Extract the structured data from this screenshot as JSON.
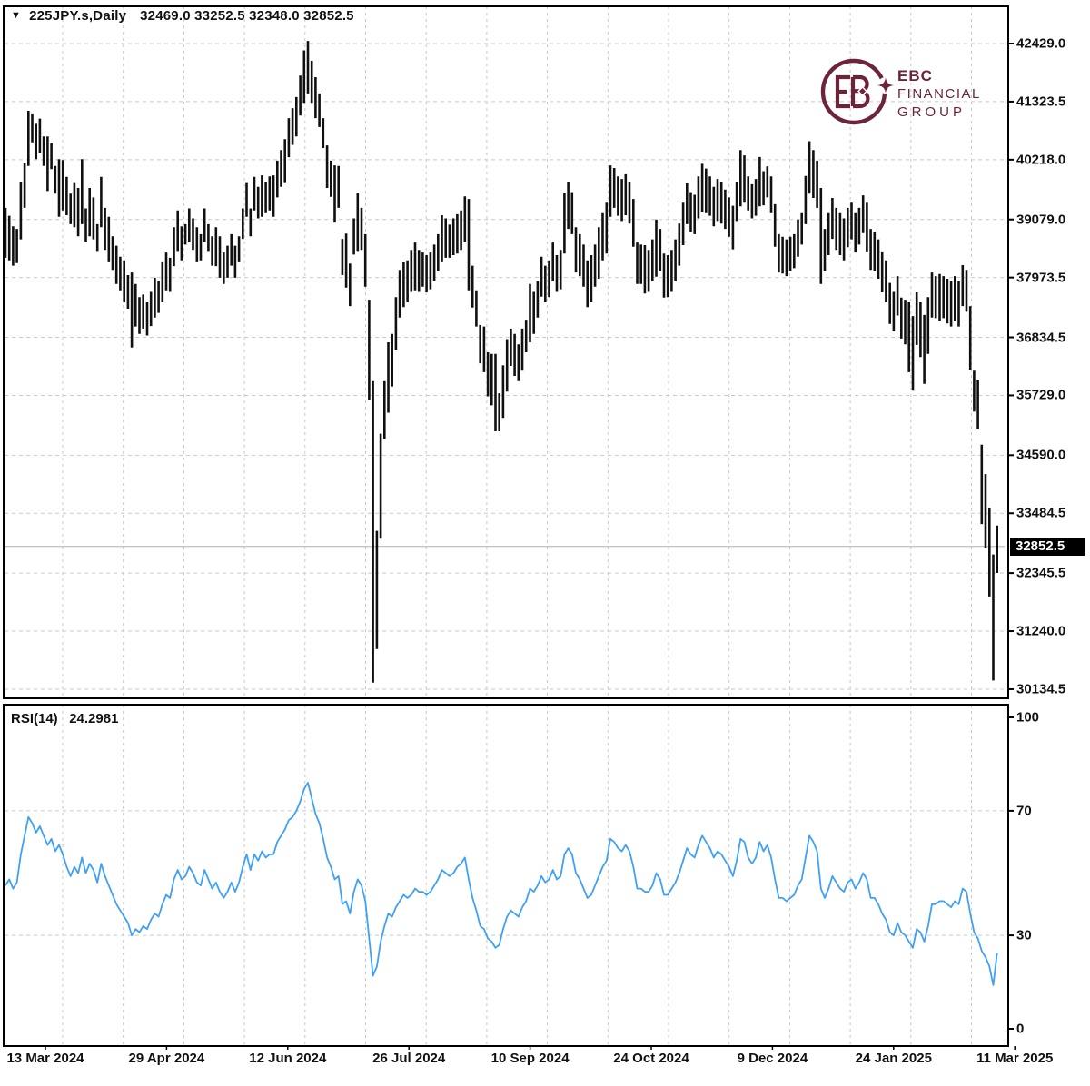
{
  "header": {
    "collapse_icon": "▼",
    "symbol_timeframe": "225JPY.s,Daily",
    "ohlc_text": "32469.0 33252.5 32348.0 32852.5"
  },
  "logo": {
    "line1": "EBC",
    "line2": "FINANCIAL",
    "line3": "GROUP"
  },
  "rsi_panel": {
    "label": "RSI(14)",
    "value": "24.2981"
  },
  "current_price_label": "32852.5",
  "chart_data": {
    "type": "bar",
    "subtype": "ohlc_high_low_bars",
    "title": "225JPY.s,Daily",
    "symbol": "225JPY.s",
    "timeframe": "Daily",
    "last_bar_ohlc": {
      "open": 32469.0,
      "high": 33252.5,
      "low": 32348.0,
      "close": 32852.5
    },
    "current_price": 32852.5,
    "grid": true,
    "legend_position": "none",
    "price_axis_ticks": [
      42429.0,
      41323.5,
      40218.0,
      39079.0,
      37973.5,
      36834.5,
      35729.0,
      34590.0,
      33484.5,
      32345.5,
      31240.0,
      30134.5
    ],
    "price_range": [
      30134.5,
      42429.0
    ],
    "x_axis_labels": [
      "13 Mar 2024",
      "29 Apr 2024",
      "12 Jun 2024",
      "26 Jul 2024",
      "10 Sep 2024",
      "24 Oct 2024",
      "9 Dec 2024",
      "24 Jan 2025",
      "11 Mar 2025"
    ],
    "bars_high_low": [
      [
        39300,
        38350
      ],
      [
        39150,
        38300
      ],
      [
        38950,
        38200
      ],
      [
        38900,
        38250
      ],
      [
        39800,
        38700
      ],
      [
        40150,
        39300
      ],
      [
        41150,
        40100
      ],
      [
        41100,
        40550
      ],
      [
        40900,
        40230
      ],
      [
        41000,
        40350
      ],
      [
        40660,
        40100
      ],
      [
        40660,
        39620
      ],
      [
        40530,
        40040
      ],
      [
        40100,
        39570
      ],
      [
        40230,
        39130
      ],
      [
        40210,
        39250
      ],
      [
        39890,
        39160
      ],
      [
        39570,
        38990
      ],
      [
        39790,
        38930
      ],
      [
        39680,
        38760
      ],
      [
        40230,
        38990
      ],
      [
        39290,
        38660
      ],
      [
        39680,
        38760
      ],
      [
        39500,
        38700
      ],
      [
        38990,
        38480
      ],
      [
        39890,
        38930
      ],
      [
        39300,
        38500
      ],
      [
        39130,
        38280
      ],
      [
        38760,
        38120
      ],
      [
        38580,
        37850
      ],
      [
        38370,
        37730
      ],
      [
        38300,
        37500
      ],
      [
        38020,
        37380
      ],
      [
        38070,
        36640
      ],
      [
        37850,
        37040
      ],
      [
        37600,
        36900
      ],
      [
        37650,
        37000
      ],
      [
        37500,
        36870
      ],
      [
        37700,
        37050
      ],
      [
        37970,
        37210
      ],
      [
        37900,
        37300
      ],
      [
        38280,
        37500
      ],
      [
        38450,
        37730
      ],
      [
        38350,
        37700
      ],
      [
        38930,
        38190
      ],
      [
        39250,
        38480
      ],
      [
        38950,
        38300
      ],
      [
        38990,
        38600
      ],
      [
        39290,
        38660
      ],
      [
        39100,
        38500
      ],
      [
        38930,
        38280
      ],
      [
        38800,
        38300
      ],
      [
        39290,
        38660
      ],
      [
        38990,
        38480
      ],
      [
        38760,
        38200
      ],
      [
        38930,
        38190
      ],
      [
        38760,
        37970
      ],
      [
        38450,
        37850
      ],
      [
        38580,
        37970
      ],
      [
        38800,
        38200
      ],
      [
        38580,
        37970
      ],
      [
        38760,
        38280
      ],
      [
        39290,
        38710
      ],
      [
        39790,
        39130
      ],
      [
        39290,
        38760
      ],
      [
        39890,
        39250
      ],
      [
        39700,
        39100
      ],
      [
        39920,
        39130
      ],
      [
        39800,
        39200
      ],
      [
        39900,
        39250
      ],
      [
        39920,
        39130
      ],
      [
        40200,
        39500
      ],
      [
        40400,
        39700
      ],
      [
        40610,
        39790
      ],
      [
        41010,
        40265
      ],
      [
        41200,
        40500
      ],
      [
        41410,
        40660
      ],
      [
        41820,
        41060
      ],
      [
        42300,
        41300
      ],
      [
        42480,
        41480
      ],
      [
        42100,
        41300
      ],
      [
        41790,
        41010
      ],
      [
        41480,
        40840
      ],
      [
        41010,
        40440
      ],
      [
        40490,
        39680
      ],
      [
        40200,
        39510
      ],
      [
        40110,
        39020
      ],
      [
        40100,
        39300
      ],
      [
        38710,
        38020
      ],
      [
        38810,
        37780
      ],
      [
        38240,
        37430
      ],
      [
        39100,
        38410
      ],
      [
        39590,
        38480
      ],
      [
        39300,
        38500
      ],
      [
        38800,
        37800
      ],
      [
        37550,
        35650
      ],
      [
        36000,
        30260
      ],
      [
        33150,
        30900
      ],
      [
        35000,
        33000
      ],
      [
        36000,
        34900
      ],
      [
        36740,
        35400
      ],
      [
        36900,
        35900
      ],
      [
        37600,
        36600
      ],
      [
        38120,
        37210
      ],
      [
        38270,
        37410
      ],
      [
        38300,
        37500
      ],
      [
        38500,
        37700
      ],
      [
        38640,
        37730
      ],
      [
        38500,
        37700
      ],
      [
        38450,
        37800
      ],
      [
        38400,
        37690
      ],
      [
        38450,
        37750
      ],
      [
        38600,
        37900
      ],
      [
        38800,
        38100
      ],
      [
        39160,
        38280
      ],
      [
        39100,
        38350
      ],
      [
        38980,
        38350
      ],
      [
        39100,
        38400
      ],
      [
        39180,
        38430
      ],
      [
        39250,
        38500
      ],
      [
        39520,
        38660
      ],
      [
        39470,
        37730
      ],
      [
        38200,
        37400
      ],
      [
        37730,
        37040
      ],
      [
        37070,
        36340
      ],
      [
        37040,
        36170
      ],
      [
        36550,
        35710
      ],
      [
        36520,
        35540
      ],
      [
        36520,
        35045
      ],
      [
        35770,
        35045
      ],
      [
        36300,
        35300
      ],
      [
        36800,
        35800
      ],
      [
        37000,
        36290
      ],
      [
        36900,
        36100
      ],
      [
        36700,
        36000
      ],
      [
        37000,
        36200
      ],
      [
        37170,
        36550
      ],
      [
        37850,
        36740
      ],
      [
        37700,
        36900
      ],
      [
        37900,
        37210
      ],
      [
        38370,
        37610
      ],
      [
        38200,
        37500
      ],
      [
        38300,
        37600
      ],
      [
        38640,
        37900
      ],
      [
        38400,
        37700
      ],
      [
        38500,
        37750
      ],
      [
        39580,
        38430
      ],
      [
        39800,
        38900
      ],
      [
        39600,
        38800
      ],
      [
        38930,
        38070
      ],
      [
        38800,
        38000
      ],
      [
        38600,
        37800
      ],
      [
        38300,
        37410
      ],
      [
        38400,
        37500
      ],
      [
        38600,
        37800
      ],
      [
        38930,
        37950
      ],
      [
        39200,
        38300
      ],
      [
        39400,
        38430
      ],
      [
        40110,
        39130
      ],
      [
        40060,
        39300
      ],
      [
        39900,
        39150
      ],
      [
        39850,
        39050
      ],
      [
        39940,
        39160
      ],
      [
        39800,
        39000
      ],
      [
        39470,
        38560
      ],
      [
        38640,
        37850
      ],
      [
        38600,
        37850
      ],
      [
        38590,
        37670
      ],
      [
        38500,
        37700
      ],
      [
        38700,
        37900
      ],
      [
        39080,
        37990
      ],
      [
        38900,
        38100
      ],
      [
        38430,
        37590
      ],
      [
        38400,
        37600
      ],
      [
        38500,
        37700
      ],
      [
        38700,
        37900
      ],
      [
        39000,
        38200
      ],
      [
        39400,
        38590
      ],
      [
        39770,
        38990
      ],
      [
        39600,
        38850
      ],
      [
        39550,
        38800
      ],
      [
        39900,
        39100
      ],
      [
        40140,
        39230
      ],
      [
        40050,
        39200
      ],
      [
        39900,
        39150
      ],
      [
        39700,
        38950
      ],
      [
        39850,
        39050
      ],
      [
        39800,
        39000
      ],
      [
        39650,
        38900
      ],
      [
        39500,
        38750
      ],
      [
        39340,
        38510
      ],
      [
        39800,
        39050
      ],
      [
        40400,
        39330
      ],
      [
        40300,
        39400
      ],
      [
        39900,
        39250
      ],
      [
        39750,
        39100
      ],
      [
        39850,
        39150
      ],
      [
        40270,
        39330
      ],
      [
        40000,
        39350
      ],
      [
        40090,
        39500
      ],
      [
        39900,
        39200
      ],
      [
        39370,
        38560
      ],
      [
        38800,
        38070
      ],
      [
        38750,
        38050
      ],
      [
        38700,
        38000
      ],
      [
        38750,
        38100
      ],
      [
        38800,
        38150
      ],
      [
        39080,
        38370
      ],
      [
        39200,
        38600
      ],
      [
        39910,
        38990
      ],
      [
        40570,
        39570
      ],
      [
        40400,
        39490
      ],
      [
        40200,
        39300
      ],
      [
        39680,
        37850
      ],
      [
        38900,
        38100
      ],
      [
        39200,
        38400
      ],
      [
        39490,
        38710
      ],
      [
        39300,
        38500
      ],
      [
        39200,
        38400
      ],
      [
        39100,
        38300
      ],
      [
        39300,
        38550
      ],
      [
        39400,
        38700
      ],
      [
        39200,
        38450
      ],
      [
        39300,
        38600
      ],
      [
        39540,
        38820
      ],
      [
        39400,
        38470
      ],
      [
        38900,
        38120
      ],
      [
        38850,
        38100
      ],
      [
        38700,
        37950
      ],
      [
        38470,
        37690
      ],
      [
        38300,
        37500
      ],
      [
        37870,
        37090
      ],
      [
        37700,
        36950
      ],
      [
        38000,
        37250
      ],
      [
        37590,
        36810
      ],
      [
        37550,
        36700
      ],
      [
        37500,
        36170
      ],
      [
        37240,
        35820
      ],
      [
        37690,
        36690
      ],
      [
        37500,
        36460
      ],
      [
        37260,
        35950
      ],
      [
        37600,
        36520
      ],
      [
        38070,
        37210
      ],
      [
        38000,
        37200
      ],
      [
        38040,
        37150
      ],
      [
        38000,
        37200
      ],
      [
        37950,
        37100
      ],
      [
        37900,
        37040
      ],
      [
        38000,
        37150
      ],
      [
        37900,
        37040
      ],
      [
        38210,
        37430
      ],
      [
        38120,
        37320
      ],
      [
        37430,
        36220
      ],
      [
        36200,
        35420
      ],
      [
        36030,
        35080
      ],
      [
        34790,
        33280
      ],
      [
        34230,
        32830
      ],
      [
        33580,
        31900
      ],
      [
        32700,
        30300
      ],
      [
        33252,
        32348
      ]
    ],
    "rsi": {
      "name": "RSI",
      "period": 14,
      "current_value": 24.2981,
      "scale_ticks": [
        100,
        70,
        30,
        0
      ],
      "level_lines": [
        70,
        30
      ],
      "values": [
        46,
        48,
        45,
        47,
        56,
        62,
        68,
        66,
        63,
        65,
        62,
        59,
        61,
        57,
        59,
        56,
        52,
        49,
        52,
        50,
        55,
        50,
        53,
        51,
        47,
        53,
        49,
        46,
        43,
        40,
        38,
        36,
        34,
        30,
        32,
        31,
        33,
        32,
        35,
        37,
        36,
        40,
        43,
        42,
        48,
        51,
        48,
        49,
        52,
        50,
        47,
        46,
        51,
        48,
        45,
        47,
        44,
        42,
        44,
        47,
        44,
        47,
        52,
        56,
        51,
        56,
        54,
        57,
        55,
        56,
        56,
        60,
        62,
        64,
        67,
        68,
        70,
        73,
        77,
        79,
        74,
        69,
        66,
        61,
        55,
        52,
        48,
        49,
        40,
        41,
        37,
        44,
        48,
        46,
        41,
        29,
        17,
        20,
        28,
        33,
        37,
        36,
        39,
        41,
        43,
        42,
        43,
        45,
        44,
        44,
        43,
        44,
        46,
        48,
        51,
        50,
        49,
        50,
        52,
        53,
        55,
        48,
        42,
        38,
        33,
        32,
        29,
        28,
        26,
        27,
        32,
        36,
        38,
        37,
        36,
        39,
        41,
        45,
        44,
        46,
        49,
        47,
        48,
        51,
        48,
        49,
        56,
        58,
        56,
        50,
        48,
        45,
        42,
        43,
        46,
        49,
        52,
        54,
        61,
        60,
        58,
        57,
        59,
        57,
        52,
        45,
        45,
        44,
        44,
        46,
        50,
        48,
        43,
        43,
        45,
        47,
        50,
        54,
        58,
        56,
        55,
        59,
        62,
        60,
        58,
        55,
        57,
        56,
        54,
        52,
        49,
        54,
        61,
        60,
        55,
        53,
        55,
        60,
        57,
        59,
        55,
        48,
        42,
        42,
        41,
        42,
        43,
        46,
        48,
        55,
        62,
        60,
        57,
        45,
        42,
        45,
        49,
        47,
        45,
        44,
        47,
        48,
        45,
        47,
        50,
        48,
        42,
        42,
        40,
        37,
        35,
        31,
        30,
        34,
        31,
        30,
        28,
        26,
        32,
        31,
        28,
        33,
        40,
        40,
        41,
        41,
        40,
        39,
        41,
        40,
        45,
        44,
        37,
        31,
        29,
        25,
        23,
        20,
        14,
        24.3
      ]
    },
    "colors": {
      "bar": "#101010",
      "rsi_line": "#3fa0f5",
      "grid": "#c9c9c9",
      "border": "#000000",
      "current_price_line": "#b0b0b0",
      "current_price_box_bg": "#000000",
      "current_price_box_text": "#ffffff",
      "logo": "#6e2438",
      "text": "#111111"
    }
  }
}
